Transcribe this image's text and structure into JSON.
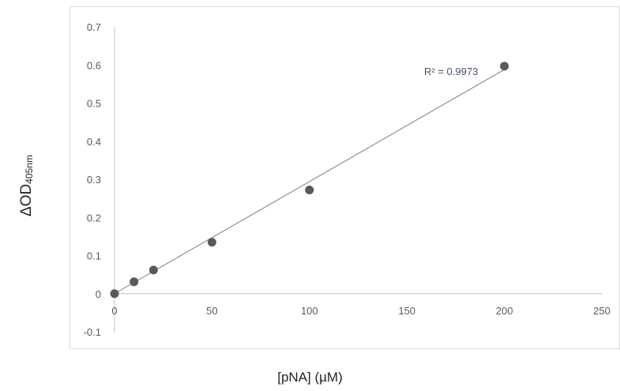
{
  "chart_data": {
    "type": "scatter",
    "xlabel": "[pNA] (µM)",
    "ylabel": "ΔOD",
    "ylabel_subscript": "405nm",
    "x_ticks": [
      "0",
      "50",
      "100",
      "150",
      "200",
      "250"
    ],
    "y_ticks": [
      "-0.1",
      "0",
      "0.1",
      "0.2",
      "0.3",
      "0.4",
      "0.5",
      "0.6",
      "0.7"
    ],
    "xlim": [
      0,
      250
    ],
    "ylim": [
      -0.1,
      0.7
    ],
    "grid": false,
    "series": [
      {
        "x": [
          0,
          10,
          20,
          50,
          100,
          200
        ],
        "y": [
          0.0,
          0.031,
          0.062,
          0.135,
          0.272,
          0.597
        ]
      }
    ],
    "trendline": {
      "type": "linear",
      "x": [
        0,
        200
      ],
      "y": [
        0.0,
        0.588
      ],
      "r2_label": "R² = 0.9973"
    },
    "colors": {
      "marker": "#595959",
      "trendline": "#7a7a7a",
      "axis": "#bfbfbf",
      "tick_text": "#595959",
      "frame": "#d9d9d9"
    }
  }
}
